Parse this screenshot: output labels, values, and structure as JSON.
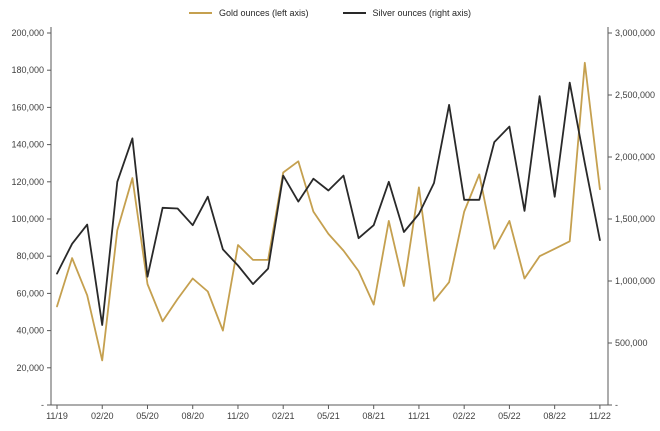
{
  "legend": [
    {
      "label": "Gold ounces (left axis)",
      "color": "#C5A04F"
    },
    {
      "label": "Silver ounces (right axis)",
      "color": "#292929"
    }
  ],
  "colors": {
    "gold": "#C5A04F",
    "silver": "#292929",
    "axis_line": "#595959",
    "tick_text": "#404040"
  },
  "chart_data": {
    "type": "line",
    "title": "",
    "grid": false,
    "legend_position": "top",
    "categories": [
      "11/19",
      "12/19",
      "01/20",
      "02/20",
      "03/20",
      "04/20",
      "05/20",
      "06/20",
      "07/20",
      "08/20",
      "09/20",
      "10/20",
      "11/20",
      "12/20",
      "01/21",
      "02/21",
      "03/21",
      "04/21",
      "05/21",
      "06/21",
      "07/21",
      "08/21",
      "09/21",
      "10/21",
      "11/21",
      "12/21",
      "01/22",
      "02/22",
      "03/22",
      "04/22",
      "05/22",
      "06/22",
      "07/22",
      "08/22",
      "09/22",
      "10/22",
      "11/22"
    ],
    "x_tick_labels": [
      "11/19",
      "02/20",
      "05/20",
      "08/20",
      "11/20",
      "02/21",
      "05/21",
      "08/21",
      "11/21",
      "02/22",
      "05/22",
      "08/22",
      "11/22"
    ],
    "series": [
      {
        "name": "Gold ounces (left axis)",
        "axis": "left",
        "color": "#C5A04F",
        "values": [
          53000,
          79000,
          59000,
          24000,
          94000,
          122000,
          65000,
          45000,
          57000,
          68000,
          61000,
          40000,
          86000,
          78000,
          78000,
          125000,
          131000,
          104000,
          92000,
          83000,
          72000,
          54000,
          99000,
          64000,
          117000,
          56000,
          66000,
          104000,
          124000,
          84000,
          99000,
          68000,
          80000,
          84000,
          88000,
          184000,
          116000
        ]
      },
      {
        "name": "Silver ounces (right axis)",
        "axis": "right",
        "color": "#292929",
        "values": [
          1060000,
          1300000,
          1455000,
          645000,
          1800000,
          2150000,
          1035000,
          1590000,
          1585000,
          1450000,
          1680000,
          1255000,
          1125000,
          975000,
          1100000,
          1850000,
          1640000,
          1825000,
          1730000,
          1850000,
          1345000,
          1450000,
          1800000,
          1395000,
          1540000,
          1790000,
          2420000,
          1655000,
          1655000,
          2120000,
          2245000,
          1565000,
          2490000,
          1680000,
          2600000,
          1950000,
          1330000
        ]
      }
    ],
    "left_axis": {
      "min": 0,
      "max": 200000,
      "step": 20000,
      "tick_labels": [
        "-",
        "20,000",
        "40,000",
        "60,000",
        "80,000",
        "100,000",
        "120,000",
        "140,000",
        "160,000",
        "180,000",
        "200,000"
      ]
    },
    "right_axis": {
      "min": 0,
      "max": 3000000,
      "step": 500000,
      "tick_labels": [
        "-",
        "500,000",
        "1,000,000",
        "1,500,000",
        "2,000,000",
        "2,500,000",
        "3,000,000"
      ]
    }
  }
}
